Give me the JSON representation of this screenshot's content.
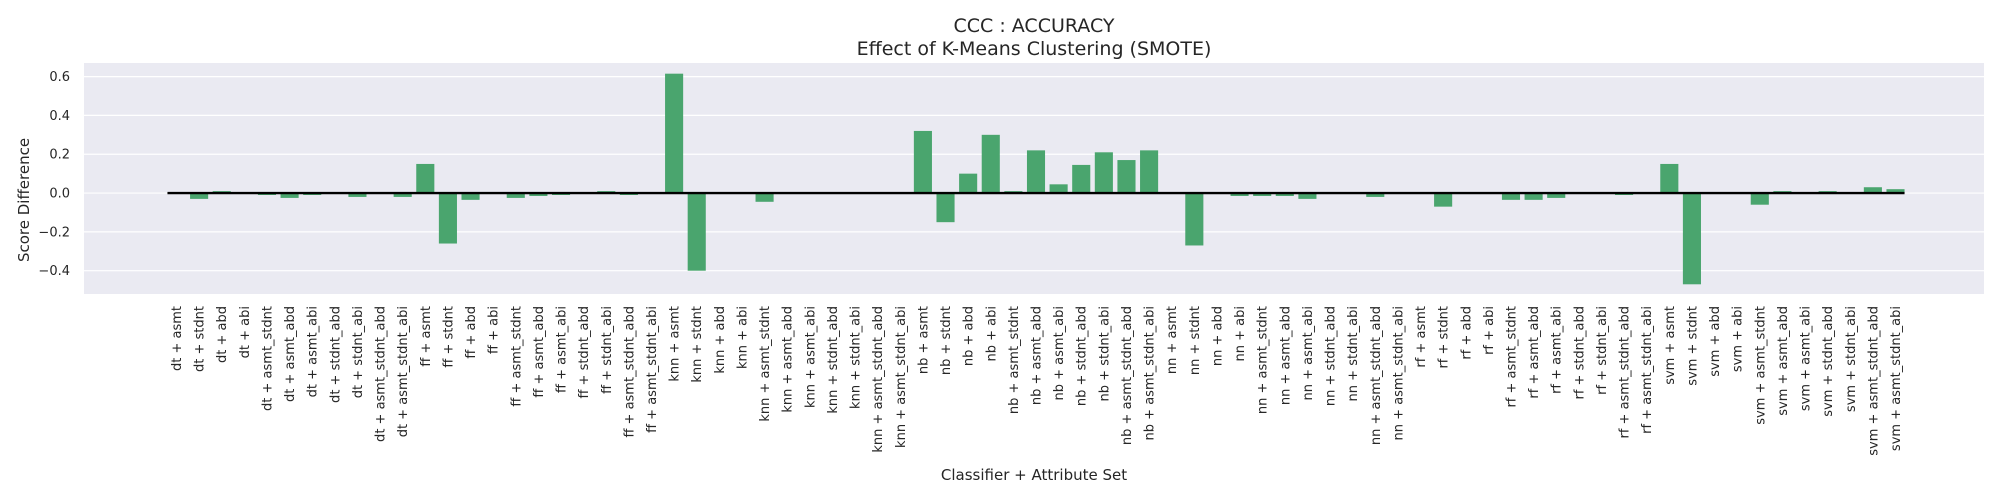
{
  "chart_data": {
    "type": "bar",
    "title": "CCC : ACCURACY",
    "subtitle": "Effect of K-Means Clustering (SMOTE)",
    "xlabel": "Classifier + Attribute Set",
    "ylabel": "Score Difference",
    "ylim": [
      -0.52,
      0.67
    ],
    "yticks": [
      "0.6",
      "0.4",
      "0.2",
      "0.0",
      "−0.2",
      "−0.4"
    ],
    "ytick_values": [
      0.6,
      0.4,
      0.2,
      0.0,
      -0.2,
      -0.4
    ],
    "grid": true,
    "legend": "none",
    "colors": {
      "bar": "#4aa56e",
      "zero_line": "#000000",
      "plot_bg": "#eaeaf2",
      "grid": "#ffffff"
    },
    "categories": [
      "dt + asmt",
      "dt + stdnt",
      "dt + abd",
      "dt + abi",
      "dt + asmt_stdnt",
      "dt + asmt_abd",
      "dt + asmt_abi",
      "dt + stdnt_abd",
      "dt + stdnt_abi",
      "dt + asmt_stdnt_abd",
      "dt + asmt_stdnt_abi",
      "ff + asmt",
      "ff + stdnt",
      "ff + abd",
      "ff + abi",
      "ff + asmt_stdnt",
      "ff + asmt_abd",
      "ff + asmt_abi",
      "ff + stdnt_abd",
      "ff + stdnt_abi",
      "ff + asmt_stdnt_abd",
      "ff + asmt_stdnt_abi",
      "knn + asmt",
      "knn + stdnt",
      "knn + abd",
      "knn + abi",
      "knn + asmt_stdnt",
      "knn + asmt_abd",
      "knn + asmt_abi",
      "knn + stdnt_abd",
      "knn + stdnt_abi",
      "knn + asmt_stdnt_abd",
      "knn + asmt_stdnt_abi",
      "nb + asmt",
      "nb + stdnt",
      "nb + abd",
      "nb + abi",
      "nb + asmt_stdnt",
      "nb + asmt_abd",
      "nb + asmt_abi",
      "nb + stdnt_abd",
      "nb + stdnt_abi",
      "nb + asmt_stdnt_abd",
      "nb + asmt_stdnt_abi",
      "nn + asmt",
      "nn + stdnt",
      "nn + abd",
      "nn + abi",
      "nn + asmt_stdnt",
      "nn + asmt_abd",
      "nn + asmt_abi",
      "nn + stdnt_abd",
      "nn + stdnt_abi",
      "nn + asmt_stdnt_abd",
      "nn + asmt_stdnt_abi",
      "rf + asmt",
      "rf + stdnt",
      "rf + abd",
      "rf + abi",
      "rf + asmt_stdnt",
      "rf + asmt_abd",
      "rf + asmt_abi",
      "rf + stdnt_abd",
      "rf + stdnt_abi",
      "rf + asmt_stdnt_abd",
      "rf + asmt_stdnt_abi",
      "svm + asmt",
      "svm + stdnt",
      "svm + abd",
      "svm + abi",
      "svm + asmt_stdnt",
      "svm + asmt_abd",
      "svm + asmt_abi",
      "svm + stdnt_abd",
      "svm + stdnt_abi",
      "svm + asmt_stdnt_abd",
      "svm + asmt_stdnt_abi"
    ],
    "values": [
      0.0,
      -0.03,
      0.01,
      0.0,
      -0.01,
      -0.025,
      -0.01,
      0.0,
      -0.02,
      0.0,
      -0.02,
      0.15,
      -0.26,
      -0.035,
      0.0,
      -0.025,
      -0.015,
      -0.01,
      0.0,
      0.01,
      -0.01,
      0.0,
      0.615,
      -0.4,
      0.0,
      0.0,
      -0.045,
      0.0,
      0.0,
      0.0,
      0.0,
      0.0,
      0.0,
      0.32,
      -0.15,
      0.1,
      0.3,
      0.01,
      0.22,
      0.045,
      0.145,
      0.21,
      0.17,
      0.22,
      0.0,
      -0.27,
      0.0,
      -0.015,
      -0.015,
      -0.015,
      -0.03,
      0.0,
      0.0,
      -0.02,
      0.0,
      0.0,
      -0.07,
      0.0,
      0.0,
      -0.035,
      -0.035,
      -0.025,
      0.0,
      0.0,
      -0.01,
      0.0,
      0.15,
      -0.47,
      0.0,
      0.0,
      -0.06,
      0.01,
      0.0,
      0.01,
      0.0,
      0.03,
      0.02
    ]
  }
}
